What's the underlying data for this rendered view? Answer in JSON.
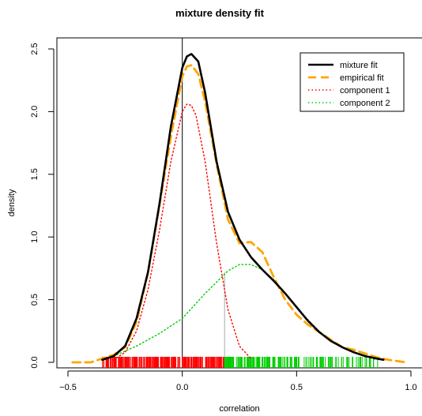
{
  "chart_data": {
    "type": "line",
    "title": "mixture density fit",
    "xlabel": "correlation",
    "ylabel": "density",
    "xlim": [
      -0.5,
      1.0
    ],
    "ylim": [
      0.0,
      2.5
    ],
    "xticks": [
      {
        "value": -0.5,
        "label": "−0.5"
      },
      {
        "value": 0.0,
        "label": "0.0"
      },
      {
        "value": 0.5,
        "label": "0.5"
      },
      {
        "value": 1.0,
        "label": "1.0"
      }
    ],
    "yticks": [
      {
        "value": 0.0,
        "label": "0.0"
      },
      {
        "value": 0.5,
        "label": "0.5"
      },
      {
        "value": 1.0,
        "label": "1.0"
      },
      {
        "value": 1.5,
        "label": "1.5"
      },
      {
        "value": 2.0,
        "label": "2.0"
      },
      {
        "value": 2.5,
        "label": "2.5"
      }
    ],
    "legend_position": "top-right",
    "grid": false,
    "series": [
      {
        "name": "mixture fit",
        "color": "#000000",
        "style": "solid",
        "x": [
          -0.35,
          -0.3,
          -0.25,
          -0.2,
          -0.15,
          -0.1,
          -0.05,
          0.0,
          0.02,
          0.04,
          0.07,
          0.1,
          0.15,
          0.2,
          0.25,
          0.3,
          0.35,
          0.4,
          0.45,
          0.5,
          0.55,
          0.6,
          0.65,
          0.7,
          0.75,
          0.8,
          0.85,
          0.88
        ],
        "y": [
          0.02,
          0.05,
          0.13,
          0.35,
          0.72,
          1.26,
          1.88,
          2.35,
          2.44,
          2.46,
          2.4,
          2.15,
          1.6,
          1.2,
          0.98,
          0.84,
          0.74,
          0.65,
          0.55,
          0.44,
          0.33,
          0.24,
          0.17,
          0.12,
          0.08,
          0.05,
          0.03,
          0.02
        ]
      },
      {
        "name": "empirical fit",
        "color": "#FFA500",
        "style": "dashed",
        "x": [
          -0.48,
          -0.4,
          -0.35,
          -0.3,
          -0.25,
          -0.2,
          -0.15,
          -0.1,
          -0.05,
          0.0,
          0.02,
          0.04,
          0.07,
          0.1,
          0.15,
          0.2,
          0.25,
          0.3,
          0.35,
          0.4,
          0.45,
          0.5,
          0.55,
          0.6,
          0.65,
          0.7,
          0.75,
          0.8,
          0.85,
          0.9,
          0.98
        ],
        "y": [
          0.0,
          0.0,
          0.03,
          0.06,
          0.12,
          0.32,
          0.72,
          1.25,
          1.8,
          2.28,
          2.36,
          2.37,
          2.3,
          2.08,
          1.58,
          1.14,
          0.95,
          0.96,
          0.88,
          0.68,
          0.5,
          0.38,
          0.3,
          0.24,
          0.18,
          0.12,
          0.1,
          0.07,
          0.04,
          0.02,
          0.0
        ]
      },
      {
        "name": "component 1",
        "color": "#FF0000",
        "style": "dotted",
        "x": [
          -0.3,
          -0.25,
          -0.2,
          -0.15,
          -0.1,
          -0.05,
          0.0,
          0.02,
          0.04,
          0.06,
          0.1,
          0.15,
          0.2,
          0.25,
          0.3
        ],
        "y": [
          0.02,
          0.08,
          0.25,
          0.58,
          1.05,
          1.6,
          2.0,
          2.06,
          2.05,
          1.97,
          1.6,
          0.95,
          0.42,
          0.13,
          0.03
        ]
      },
      {
        "name": "component 2",
        "color": "#00CC00",
        "style": "dotted",
        "x": [
          -0.3,
          -0.2,
          -0.1,
          0.0,
          0.1,
          0.2,
          0.25,
          0.3,
          0.35,
          0.4,
          0.5,
          0.6,
          0.7,
          0.8,
          0.85
        ],
        "y": [
          0.05,
          0.13,
          0.23,
          0.35,
          0.55,
          0.73,
          0.78,
          0.78,
          0.74,
          0.66,
          0.44,
          0.24,
          0.12,
          0.05,
          0.02
        ]
      }
    ],
    "vlines": [
      {
        "x": 0.0,
        "color": "#000000"
      },
      {
        "x": 0.185,
        "y_max": 0.72,
        "color": "#AAAAAA"
      }
    ],
    "rug": {
      "split_x": 0.185,
      "left_color": "#FF0000",
      "right_color": "#00CC00",
      "left_range": [
        -0.35,
        0.185
      ],
      "right_range": [
        0.185,
        0.86
      ]
    }
  }
}
